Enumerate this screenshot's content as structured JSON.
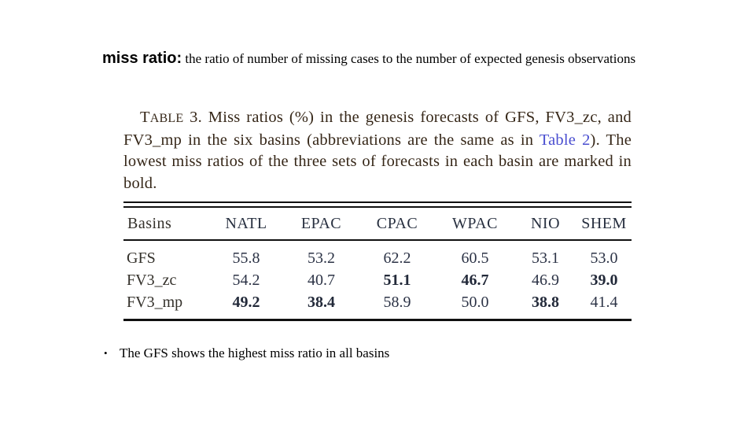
{
  "slide": {
    "title": {
      "lead": "miss ratio:",
      "rest": " the ratio of number of missing cases to the number of expected genesis observations"
    },
    "bullet": {
      "marker": "•",
      "text": "The GFS shows the highest miss ratio in all basins"
    }
  },
  "figure": {
    "caption": {
      "t_cap": "T",
      "able": "ABLE",
      "pre_link": " 3. Miss ratios (%) in the genesis forecasts of GFS, FV3_zc, and FV3_mp in the six basins (abbreviations are the same as in ",
      "link": "Table 2",
      "post_link": "). The lowest miss ratios of the three sets of forecasts in each basin are marked in bold."
    },
    "table": {
      "header": [
        "Basins",
        "NATL",
        "EPAC",
        "CPAC",
        "WPAC",
        "NIO",
        "SHEM"
      ],
      "rows": [
        {
          "label": "GFS",
          "values": [
            "55.8",
            "53.2",
            "62.2",
            "60.5",
            "53.1",
            "53.0"
          ],
          "bold": [
            false,
            false,
            false,
            false,
            false,
            false
          ]
        },
        {
          "label": "FV3_zc",
          "values": [
            "54.2",
            "40.7",
            "51.1",
            "46.7",
            "46.9",
            "39.0"
          ],
          "bold": [
            false,
            false,
            true,
            true,
            false,
            true
          ]
        },
        {
          "label": "FV3_mp",
          "values": [
            "49.2",
            "38.4",
            "58.9",
            "50.0",
            "38.8",
            "41.4"
          ],
          "bold": [
            true,
            true,
            false,
            false,
            true,
            false
          ]
        }
      ]
    }
  },
  "chart_data": {
    "type": "table",
    "title": "TABLE 3. Miss ratios (%) in the genesis forecasts of GFS, FV3_zc, and FV3_mp in the six basins (abbreviations are the same as in Table 2). The lowest miss ratios of the three sets of forecasts in each basin are marked in bold.",
    "categories": [
      "NATL",
      "EPAC",
      "CPAC",
      "WPAC",
      "NIO",
      "SHEM"
    ],
    "series": [
      {
        "name": "GFS",
        "values": [
          55.8,
          53.2,
          62.2,
          60.5,
          53.1,
          53.0
        ]
      },
      {
        "name": "FV3_zc",
        "values": [
          54.2,
          40.7,
          51.1,
          46.7,
          46.9,
          39.0
        ]
      },
      {
        "name": "FV3_mp",
        "values": [
          49.2,
          38.4,
          58.9,
          50.0,
          38.8,
          41.4
        ]
      }
    ],
    "bold_marks_lowest_per_column": true
  },
  "colors": {
    "background": "#ffffff",
    "title_text": "#000000",
    "caption_text": "#362718",
    "table_text": "#2c3346",
    "table_link": "#4a4ed0",
    "rules": "#101010"
  }
}
